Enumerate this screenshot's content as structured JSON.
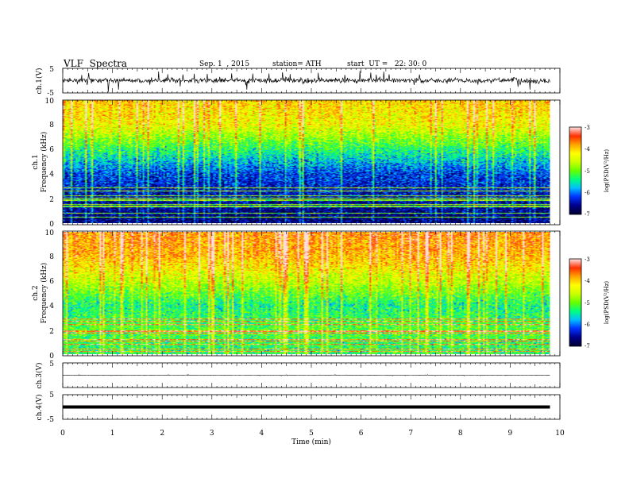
{
  "header": {
    "title": "VLF  Spectra",
    "date": "Sep. 1  , 2015",
    "station": "station= ATH",
    "start_ut": "start  UT =   22: 30: 0"
  },
  "colors": {
    "spectrogram_colormap": [
      "#000033",
      "#00008b",
      "#0033ff",
      "#00bfff",
      "#00ff80",
      "#66ff00",
      "#ccff00",
      "#ffff00",
      "#ffa500",
      "#ff3000",
      "#ffdddd"
    ]
  },
  "chart_data": [
    {
      "type": "line",
      "panel": "waveform-ch1",
      "ylabel": "ch.1(V)",
      "yticks": [
        "5",
        "-5"
      ],
      "ylim": [
        -5,
        5
      ],
      "xlim": [
        0,
        10
      ],
      "baseline": 0.1,
      "noise_amplitude": 2.5,
      "data_end_min": 9.8
    },
    {
      "type": "heatmap",
      "panel": "spectrogram-ch1",
      "ylabel_outer": "ch.1",
      "ylabel": "Frequency  (kHz)",
      "ylim": [
        0,
        10
      ],
      "yticks": [
        "0",
        "2",
        "4",
        "6",
        "8",
        "10"
      ],
      "xlim": [
        0,
        10
      ],
      "data_end_min": 9.8,
      "colorbar": {
        "label": "log(PSD(V²/Hz)",
        "ticks": [
          "-3",
          "-4",
          "-5",
          "-6",
          "-7"
        ],
        "range": [
          -7,
          -3
        ]
      },
      "psd_profile_log": [
        {
          "freq_khz": 0.5,
          "psd": -6.7
        },
        {
          "freq_khz": 2,
          "psd": -6.5
        },
        {
          "freq_khz": 4,
          "psd": -6.2
        },
        {
          "freq_khz": 6,
          "psd": -5.3
        },
        {
          "freq_khz": 8,
          "psd": -4.3
        },
        {
          "freq_khz": 10,
          "psd": -4.0
        }
      ]
    },
    {
      "type": "heatmap",
      "panel": "spectrogram-ch2",
      "ylabel_outer": "ch.2",
      "ylabel": "Frequency  (kHz)",
      "ylim": [
        0,
        10
      ],
      "yticks": [
        "0",
        "2",
        "4",
        "6",
        "8",
        "10"
      ],
      "xlim": [
        0,
        10
      ],
      "data_end_min": 9.8,
      "colorbar": {
        "label": "log(PSD(V²/Hz)",
        "ticks": [
          "-3",
          "-4",
          "-5",
          "-6",
          "-7"
        ],
        "range": [
          -7,
          -3
        ]
      },
      "psd_profile_log": [
        {
          "freq_khz": 0.5,
          "psd": -5.3
        },
        {
          "freq_khz": 2,
          "psd": -5.1
        },
        {
          "freq_khz": 4,
          "psd": -5.4
        },
        {
          "freq_khz": 6,
          "psd": -4.6
        },
        {
          "freq_khz": 8,
          "psd": -3.9
        },
        {
          "freq_khz": 10,
          "psd": -3.7
        }
      ]
    },
    {
      "type": "line",
      "panel": "waveform-ch3",
      "ylabel": "ch.3(V)",
      "yticks": [
        "5"
      ],
      "ylim": [
        -5,
        5
      ],
      "xlim": [
        0,
        10
      ],
      "baseline": 0.0,
      "noise_amplitude": 0.15,
      "data_end_min": 9.8
    },
    {
      "type": "line",
      "panel": "waveform-ch4",
      "ylabel": "ch.4(V)",
      "yticks": [
        "5",
        "-5"
      ],
      "ylim": [
        -5,
        5
      ],
      "xlim": [
        0,
        10
      ],
      "baseline": 0.0,
      "noise_amplitude": 0.0,
      "data_end_min": 9.8
    }
  ],
  "x_axis": {
    "label": "Time  (min)",
    "ticks": [
      "0",
      "1",
      "2",
      "3",
      "4",
      "5",
      "6",
      "7",
      "8",
      "9",
      "10"
    ]
  }
}
